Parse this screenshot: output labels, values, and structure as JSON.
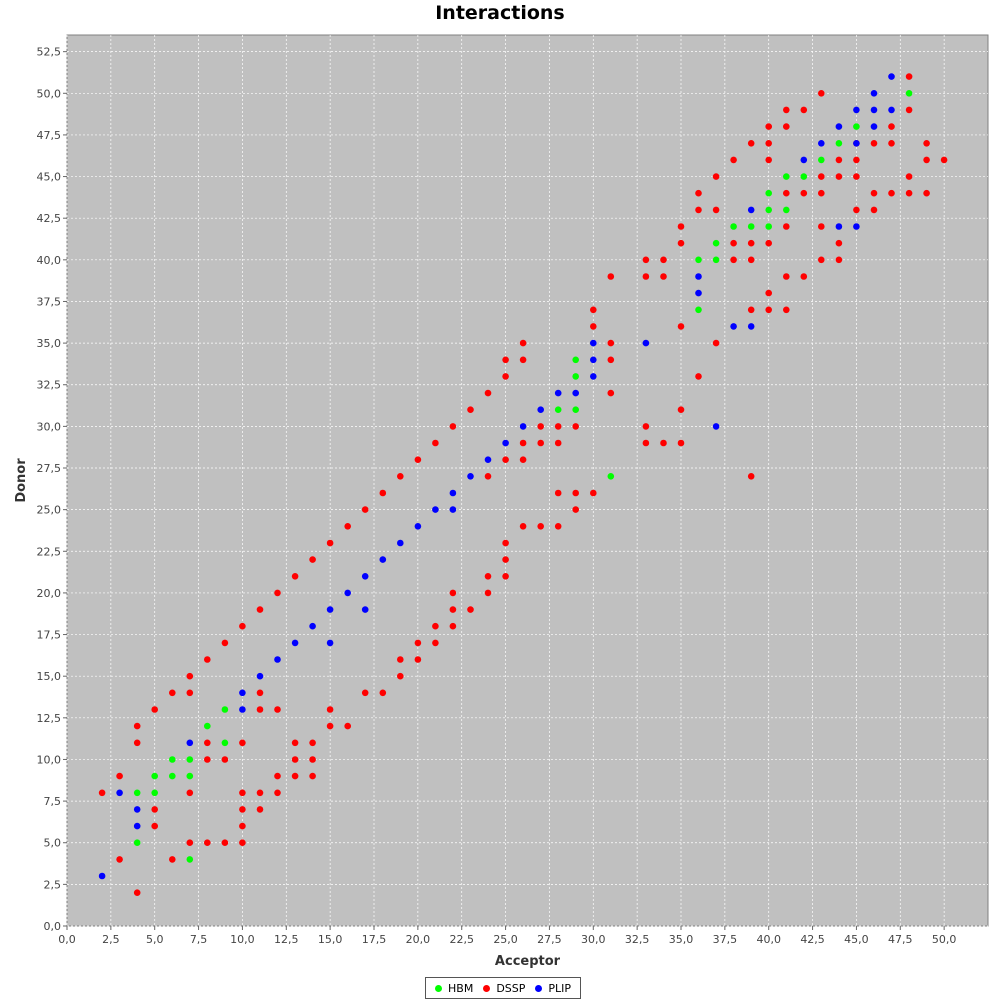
{
  "chart_data": {
    "type": "scatter",
    "title": "Interactions",
    "xlabel": "Acceptor",
    "ylabel": "Donor",
    "xlim": [
      0,
      52.5
    ],
    "ylim": [
      0,
      53.5
    ],
    "x_ticks": [
      "0,0",
      "2,5",
      "5,0",
      "7,5",
      "10,0",
      "12,5",
      "15,0",
      "17,5",
      "20,0",
      "22,5",
      "25,0",
      "27,5",
      "30,0",
      "32,5",
      "35,0",
      "37,5",
      "40,0",
      "42,5",
      "45,0",
      "47,5",
      "50,0"
    ],
    "y_ticks": [
      "0,0",
      "2,5",
      "5,0",
      "7,5",
      "10,0",
      "12,5",
      "15,0",
      "17,5",
      "20,0",
      "22,5",
      "25,0",
      "27,5",
      "30,0",
      "32,5",
      "35,0",
      "37,5",
      "40,0",
      "42,5",
      "45,0",
      "47,5",
      "50,0",
      "52,5"
    ],
    "grid": true,
    "legend_position": "bottom",
    "series": [
      {
        "name": "HBM",
        "color": "#00ff00",
        "points": [
          [
            4,
            5
          ],
          [
            4,
            8
          ],
          [
            5,
            8
          ],
          [
            5,
            9
          ],
          [
            6,
            9
          ],
          [
            6,
            10
          ],
          [
            7,
            4
          ],
          [
            7,
            9
          ],
          [
            7,
            10
          ],
          [
            8,
            12
          ],
          [
            9,
            11
          ],
          [
            9,
            13
          ],
          [
            28,
            31
          ],
          [
            29,
            31
          ],
          [
            29,
            33
          ],
          [
            29,
            34
          ],
          [
            31,
            27
          ],
          [
            36,
            37
          ],
          [
            36,
            40
          ],
          [
            37,
            40
          ],
          [
            37,
            41
          ],
          [
            38,
            42
          ],
          [
            39,
            42
          ],
          [
            40,
            42
          ],
          [
            40,
            43
          ],
          [
            40,
            44
          ],
          [
            41,
            43
          ],
          [
            41,
            45
          ],
          [
            42,
            45
          ],
          [
            43,
            46
          ],
          [
            44,
            47
          ],
          [
            45,
            48
          ],
          [
            48,
            50
          ]
        ]
      },
      {
        "name": "DSSP",
        "color": "#ff0000",
        "points": [
          [
            2,
            8
          ],
          [
            3,
            4
          ],
          [
            3,
            9
          ],
          [
            4,
            2
          ],
          [
            4,
            11
          ],
          [
            4,
            12
          ],
          [
            5,
            6
          ],
          [
            5,
            7
          ],
          [
            5,
            13
          ],
          [
            6,
            4
          ],
          [
            6,
            14
          ],
          [
            7,
            5
          ],
          [
            7,
            8
          ],
          [
            7,
            14
          ],
          [
            7,
            15
          ],
          [
            8,
            5
          ],
          [
            8,
            10
          ],
          [
            8,
            11
          ],
          [
            8,
            16
          ],
          [
            9,
            5
          ],
          [
            9,
            10
          ],
          [
            9,
            17
          ],
          [
            10,
            5
          ],
          [
            10,
            6
          ],
          [
            10,
            7
          ],
          [
            10,
            8
          ],
          [
            10,
            11
          ],
          [
            10,
            18
          ],
          [
            11,
            7
          ],
          [
            11,
            8
          ],
          [
            11,
            13
          ],
          [
            11,
            14
          ],
          [
            11,
            19
          ],
          [
            12,
            8
          ],
          [
            12,
            9
          ],
          [
            12,
            13
          ],
          [
            12,
            20
          ],
          [
            13,
            9
          ],
          [
            13,
            10
          ],
          [
            13,
            11
          ],
          [
            13,
            21
          ],
          [
            14,
            9
          ],
          [
            14,
            10
          ],
          [
            14,
            11
          ],
          [
            14,
            22
          ],
          [
            15,
            12
          ],
          [
            15,
            13
          ],
          [
            15,
            23
          ],
          [
            16,
            12
          ],
          [
            16,
            24
          ],
          [
            17,
            14
          ],
          [
            17,
            25
          ],
          [
            18,
            14
          ],
          [
            18,
            26
          ],
          [
            19,
            15
          ],
          [
            19,
            16
          ],
          [
            19,
            27
          ],
          [
            20,
            16
          ],
          [
            20,
            17
          ],
          [
            20,
            28
          ],
          [
            21,
            17
          ],
          [
            21,
            18
          ],
          [
            21,
            29
          ],
          [
            22,
            18
          ],
          [
            22,
            19
          ],
          [
            22,
            20
          ],
          [
            22,
            30
          ],
          [
            23,
            19
          ],
          [
            23,
            31
          ],
          [
            24,
            20
          ],
          [
            24,
            21
          ],
          [
            24,
            27
          ],
          [
            24,
            32
          ],
          [
            25,
            21
          ],
          [
            25,
            22
          ],
          [
            25,
            23
          ],
          [
            25,
            28
          ],
          [
            25,
            33
          ],
          [
            25,
            34
          ],
          [
            26,
            24
          ],
          [
            26,
            28
          ],
          [
            26,
            29
          ],
          [
            26,
            34
          ],
          [
            26,
            35
          ],
          [
            27,
            24
          ],
          [
            27,
            29
          ],
          [
            27,
            30
          ],
          [
            28,
            24
          ],
          [
            28,
            26
          ],
          [
            28,
            29
          ],
          [
            28,
            30
          ],
          [
            29,
            25
          ],
          [
            29,
            26
          ],
          [
            29,
            30
          ],
          [
            30,
            26
          ],
          [
            30,
            36
          ],
          [
            30,
            37
          ],
          [
            31,
            32
          ],
          [
            31,
            34
          ],
          [
            31,
            35
          ],
          [
            31,
            39
          ],
          [
            33,
            29
          ],
          [
            33,
            30
          ],
          [
            33,
            39
          ],
          [
            33,
            40
          ],
          [
            34,
            29
          ],
          [
            34,
            39
          ],
          [
            34,
            40
          ],
          [
            35,
            29
          ],
          [
            35,
            31
          ],
          [
            35,
            36
          ],
          [
            35,
            41
          ],
          [
            35,
            42
          ],
          [
            36,
            33
          ],
          [
            36,
            43
          ],
          [
            36,
            44
          ],
          [
            37,
            35
          ],
          [
            37,
            43
          ],
          [
            37,
            45
          ],
          [
            38,
            40
          ],
          [
            38,
            41
          ],
          [
            38,
            46
          ],
          [
            39,
            27
          ],
          [
            39,
            37
          ],
          [
            39,
            40
          ],
          [
            39,
            41
          ],
          [
            39,
            47
          ],
          [
            40,
            37
          ],
          [
            40,
            38
          ],
          [
            40,
            41
          ],
          [
            40,
            46
          ],
          [
            40,
            47
          ],
          [
            40,
            48
          ],
          [
            41,
            37
          ],
          [
            41,
            39
          ],
          [
            41,
            42
          ],
          [
            41,
            44
          ],
          [
            41,
            48
          ],
          [
            41,
            49
          ],
          [
            42,
            39
          ],
          [
            42,
            44
          ],
          [
            42,
            49
          ],
          [
            43,
            40
          ],
          [
            43,
            42
          ],
          [
            43,
            44
          ],
          [
            43,
            45
          ],
          [
            43,
            50
          ],
          [
            44,
            40
          ],
          [
            44,
            41
          ],
          [
            44,
            45
          ],
          [
            44,
            46
          ],
          [
            45,
            43
          ],
          [
            45,
            45
          ],
          [
            45,
            46
          ],
          [
            45,
            47
          ],
          [
            46,
            43
          ],
          [
            46,
            44
          ],
          [
            46,
            47
          ],
          [
            47,
            44
          ],
          [
            47,
            47
          ],
          [
            47,
            48
          ],
          [
            48,
            44
          ],
          [
            48,
            45
          ],
          [
            48,
            49
          ],
          [
            48,
            51
          ],
          [
            49,
            44
          ],
          [
            49,
            46
          ],
          [
            49,
            47
          ],
          [
            50,
            46
          ]
        ]
      },
      {
        "name": "PLIP",
        "color": "#0000ff",
        "points": [
          [
            2,
            3
          ],
          [
            3,
            8
          ],
          [
            4,
            6
          ],
          [
            4,
            7
          ],
          [
            7,
            11
          ],
          [
            10,
            13
          ],
          [
            10,
            14
          ],
          [
            11,
            15
          ],
          [
            12,
            16
          ],
          [
            13,
            17
          ],
          [
            14,
            18
          ],
          [
            15,
            17
          ],
          [
            15,
            19
          ],
          [
            16,
            20
          ],
          [
            17,
            19
          ],
          [
            17,
            21
          ],
          [
            18,
            22
          ],
          [
            19,
            23
          ],
          [
            20,
            24
          ],
          [
            21,
            25
          ],
          [
            22,
            25
          ],
          [
            22,
            26
          ],
          [
            23,
            27
          ],
          [
            24,
            28
          ],
          [
            25,
            29
          ],
          [
            26,
            30
          ],
          [
            27,
            31
          ],
          [
            28,
            32
          ],
          [
            29,
            32
          ],
          [
            30,
            33
          ],
          [
            30,
            34
          ],
          [
            30,
            35
          ],
          [
            33,
            35
          ],
          [
            36,
            38
          ],
          [
            36,
            39
          ],
          [
            37,
            30
          ],
          [
            38,
            36
          ],
          [
            39,
            36
          ],
          [
            39,
            43
          ],
          [
            42,
            46
          ],
          [
            43,
            47
          ],
          [
            44,
            42
          ],
          [
            44,
            48
          ],
          [
            45,
            42
          ],
          [
            45,
            47
          ],
          [
            45,
            49
          ],
          [
            46,
            48
          ],
          [
            46,
            49
          ],
          [
            46,
            50
          ],
          [
            47,
            49
          ],
          [
            47,
            51
          ]
        ]
      }
    ]
  }
}
